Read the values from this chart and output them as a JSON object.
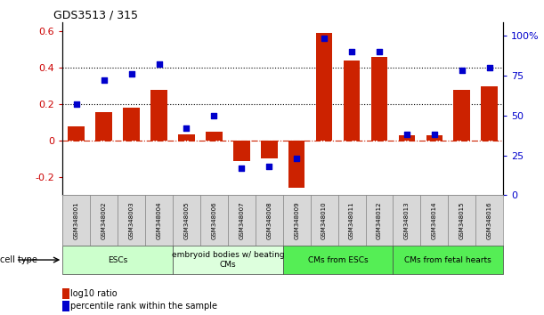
{
  "title": "GDS3513 / 315",
  "samples": [
    "GSM348001",
    "GSM348002",
    "GSM348003",
    "GSM348004",
    "GSM348005",
    "GSM348006",
    "GSM348007",
    "GSM348008",
    "GSM348009",
    "GSM348010",
    "GSM348011",
    "GSM348012",
    "GSM348013",
    "GSM348014",
    "GSM348015",
    "GSM348016"
  ],
  "log10_ratio": [
    0.08,
    0.155,
    0.18,
    0.28,
    0.035,
    0.05,
    -0.11,
    -0.1,
    -0.26,
    0.59,
    0.44,
    0.46,
    0.03,
    0.03,
    0.28,
    0.3
  ],
  "percentile_rank": [
    57,
    72,
    76,
    82,
    42,
    50,
    17,
    18,
    23,
    98,
    90,
    90,
    38,
    38,
    78,
    80
  ],
  "cell_types": [
    {
      "label": "ESCs",
      "start": 0,
      "end": 4,
      "color": "#ccffcc"
    },
    {
      "label": "embryoid bodies w/ beating\nCMs",
      "start": 4,
      "end": 8,
      "color": "#ddffdd"
    },
    {
      "label": "CMs from ESCs",
      "start": 8,
      "end": 12,
      "color": "#55ee55"
    },
    {
      "label": "CMs from fetal hearts",
      "start": 12,
      "end": 16,
      "color": "#55ee55"
    }
  ],
  "ylim_left": [
    -0.3,
    0.65
  ],
  "ylim_right": [
    0,
    108.33
  ],
  "yticks_left": [
    -0.2,
    0.0,
    0.2,
    0.4,
    0.6
  ],
  "ytick_labels_left": [
    "-0.2",
    "0",
    "0.2",
    "0.4",
    "0.6"
  ],
  "yticks_right": [
    0,
    25,
    50,
    75,
    100
  ],
  "ytick_labels_right": [
    "0",
    "25",
    "50",
    "75",
    "100%"
  ],
  "bar_color": "#cc2200",
  "dot_color": "#0000cc",
  "hline_y": [
    0.2,
    0.4
  ],
  "zero_line_y": 0.0,
  "legend_items": [
    {
      "label": "log10 ratio",
      "color": "#cc2200"
    },
    {
      "label": "percentile rank within the sample",
      "color": "#0000cc"
    }
  ],
  "cell_type_label": "cell type"
}
